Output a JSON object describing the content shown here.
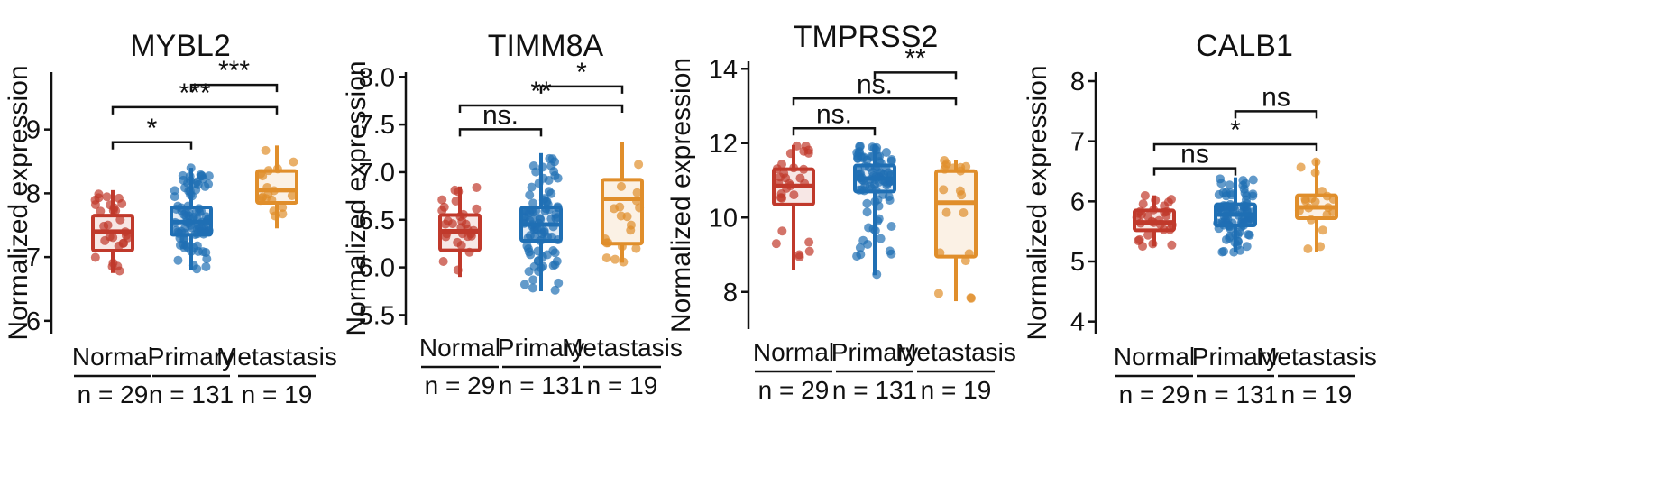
{
  "chart_data": [
    {
      "type": "box",
      "title": "MYBL2",
      "ylabel": "Normalized expression",
      "ylim": [
        5.8,
        9.9
      ],
      "yticks": [
        6,
        7,
        8,
        9
      ],
      "categories": [
        "Normal",
        "Primary",
        "Metastasis"
      ],
      "counts": [
        "n = 29",
        "n = 131",
        "n = 19"
      ],
      "colors": [
        "#C0392B",
        "#1F6FB4",
        "#E08E2B"
      ],
      "boxes": [
        {
          "min": 6.75,
          "q1": 7.1,
          "median": 7.4,
          "q3": 7.65,
          "max": 8.05
        },
        {
          "min": 6.8,
          "q1": 7.35,
          "median": 7.55,
          "q3": 7.78,
          "max": 8.4
        },
        {
          "min": 7.45,
          "q1": 7.85,
          "median": 8.05,
          "q3": 8.35,
          "max": 8.75
        }
      ],
      "comparisons": [
        {
          "from": 0,
          "to": 1,
          "y": 8.8,
          "label": "*"
        },
        {
          "from": 0,
          "to": 2,
          "y": 9.35,
          "label": "***"
        },
        {
          "from": 1,
          "to": 2,
          "y": 9.7,
          "label": "***"
        }
      ]
    },
    {
      "type": "box",
      "title": "TIMM8A",
      "ylabel": "Normalized expression",
      "ylim": [
        5.4,
        8.05
      ],
      "yticks": [
        5.5,
        6.0,
        6.5,
        7.0,
        7.5,
        8.0
      ],
      "categories": [
        "Normal",
        "Primary",
        "Metastasis"
      ],
      "counts": [
        "n = 29",
        "n = 131",
        "n = 19"
      ],
      "colors": [
        "#C0392B",
        "#1F6FB4",
        "#E08E2B"
      ],
      "boxes": [
        {
          "min": 5.9,
          "q1": 6.18,
          "median": 6.38,
          "q3": 6.55,
          "max": 6.85
        },
        {
          "min": 5.75,
          "q1": 6.28,
          "median": 6.45,
          "q3": 6.63,
          "max": 7.2
        },
        {
          "min": 6.05,
          "q1": 6.25,
          "median": 6.72,
          "q3": 6.92,
          "max": 7.32
        }
      ],
      "comparisons": [
        {
          "from": 0,
          "to": 1,
          "y": 7.45,
          "label": "ns."
        },
        {
          "from": 0,
          "to": 2,
          "y": 7.7,
          "label": "**"
        },
        {
          "from": 1,
          "to": 2,
          "y": 7.9,
          "label": "*"
        }
      ],
      "tick_decimals": 1
    },
    {
      "type": "box",
      "title": "TMPRSS2",
      "ylabel": "Normalized expression",
      "ylim": [
        7.0,
        14.2
      ],
      "yticks": [
        8,
        10,
        12,
        14
      ],
      "categories": [
        "Normal",
        "Primary",
        "Metastasis"
      ],
      "counts": [
        "n = 29",
        "n = 131",
        "n = 19"
      ],
      "colors": [
        "#C0392B",
        "#1F6FB4",
        "#E08E2B"
      ],
      "boxes": [
        {
          "min": 8.6,
          "q1": 10.35,
          "median": 10.85,
          "q3": 11.3,
          "max": 11.95
        },
        {
          "min": 8.45,
          "q1": 10.7,
          "median": 11.05,
          "q3": 11.4,
          "max": 11.95
        },
        {
          "min": 7.75,
          "q1": 8.95,
          "median": 10.4,
          "q3": 11.25,
          "max": 11.55
        }
      ],
      "comparisons": [
        {
          "from": 0,
          "to": 1,
          "y": 12.4,
          "label": "ns."
        },
        {
          "from": 0,
          "to": 2,
          "y": 13.2,
          "label": "ns."
        },
        {
          "from": 1,
          "to": 2,
          "y": 13.9,
          "label": "**"
        }
      ]
    },
    {
      "type": "box",
      "title": "CALB1",
      "ylabel": "Normalized expression",
      "ylim": [
        3.8,
        8.15
      ],
      "yticks": [
        4,
        5,
        6,
        7,
        8
      ],
      "categories": [
        "Normal",
        "Primary",
        "Metastasis"
      ],
      "counts": [
        "n = 29",
        "n = 131",
        "n = 19"
      ],
      "colors": [
        "#C0392B",
        "#1F6FB4",
        "#E08E2B"
      ],
      "boxes": [
        {
          "min": 5.25,
          "q1": 5.52,
          "median": 5.65,
          "q3": 5.85,
          "max": 6.1
        },
        {
          "min": 5.15,
          "q1": 5.6,
          "median": 5.78,
          "q3": 5.95,
          "max": 6.4
        },
        {
          "min": 5.15,
          "q1": 5.72,
          "median": 5.9,
          "q3": 6.1,
          "max": 6.7
        }
      ],
      "comparisons": [
        {
          "from": 0,
          "to": 1,
          "y": 6.55,
          "label": "ns"
        },
        {
          "from": 0,
          "to": 2,
          "y": 6.95,
          "label": "*"
        },
        {
          "from": 1,
          "to": 2,
          "y": 7.5,
          "label": "ns"
        }
      ]
    }
  ]
}
